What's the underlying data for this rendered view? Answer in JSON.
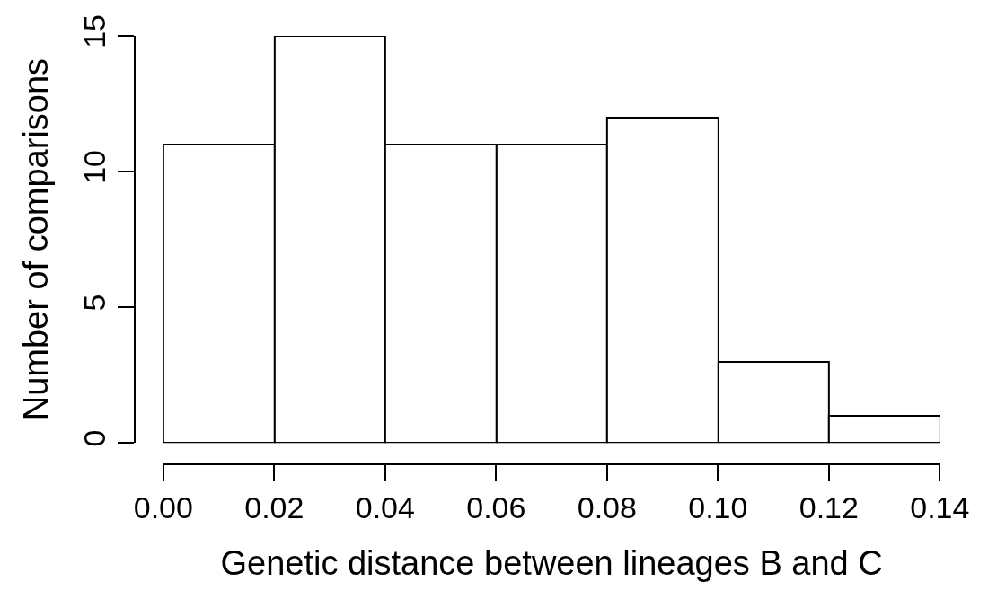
{
  "chart_data": {
    "type": "histogram",
    "xlabel": "Genetic distance between lineages B and C",
    "ylabel": "Number of comparisons",
    "bins": [
      0,
      0.02,
      0.04,
      0.06,
      0.08,
      0.1,
      0.12,
      0.14
    ],
    "values": [
      11,
      15,
      11,
      11,
      12,
      3,
      1
    ],
    "color": "#ffffff",
    "xlim": [
      0,
      0.14
    ],
    "ylim": [
      0,
      15
    ],
    "xticks": [
      {
        "value": 0,
        "label": "0.00"
      },
      {
        "value": 0.02,
        "label": "0.02"
      },
      {
        "value": 0.04,
        "label": "0.04"
      },
      {
        "value": 0.06,
        "label": "0.06"
      },
      {
        "value": 0.08,
        "label": "0.08"
      },
      {
        "value": 0.1,
        "label": "0.10"
      },
      {
        "value": 0.12,
        "label": "0.12"
      },
      {
        "value": 0.14,
        "label": "0.14"
      }
    ],
    "yticks": [
      0,
      5,
      10,
      15
    ]
  }
}
